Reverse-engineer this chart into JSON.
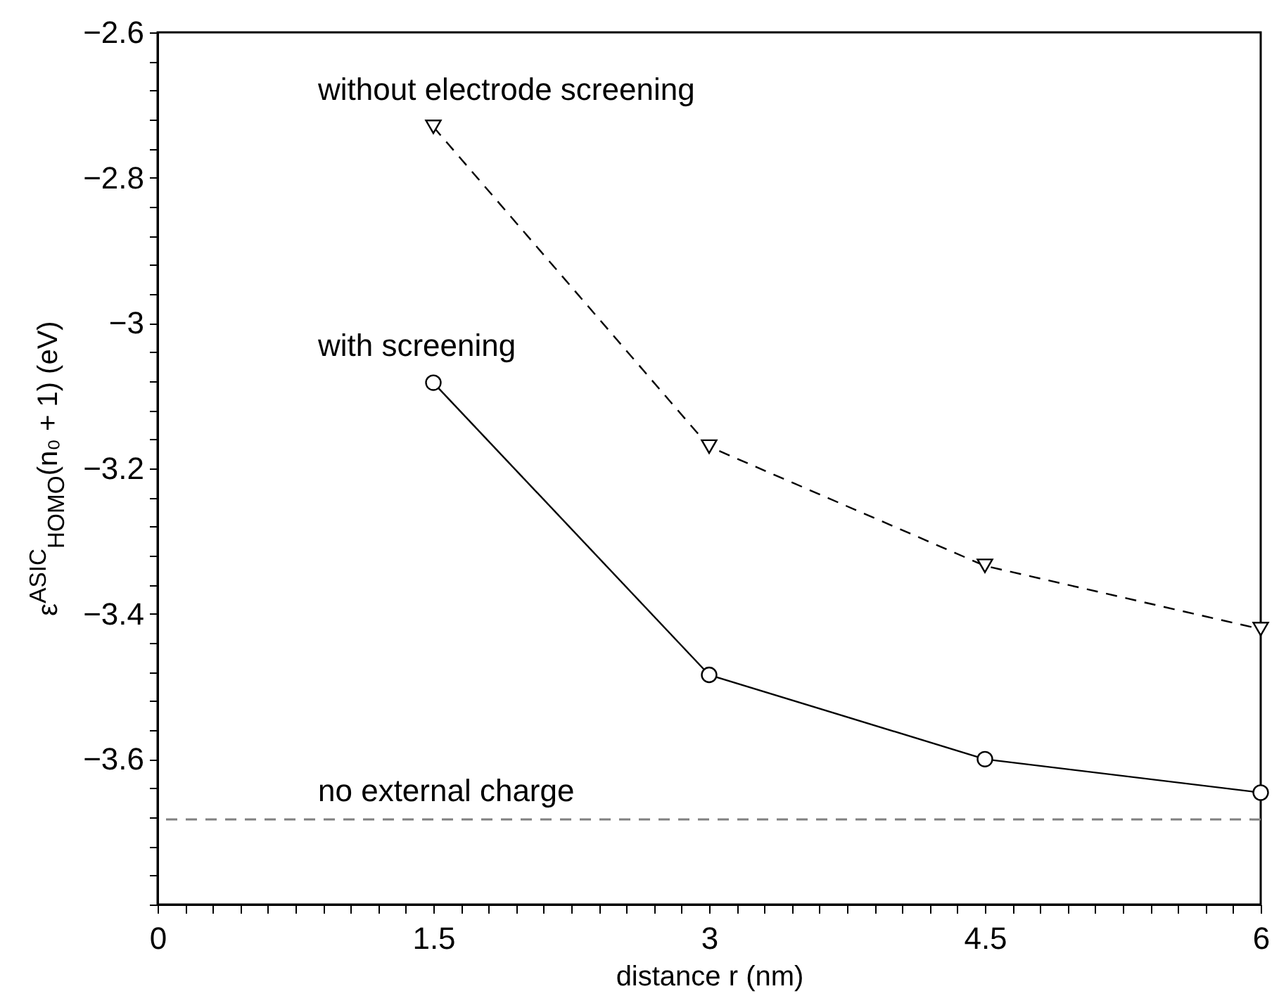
{
  "chart_data": {
    "type": "line",
    "xlabel": "distance r (nm)",
    "ylabel": "ε$^{ASIC}$$_{HOMO}$(n₀ + 1) (eV)",
    "x": [
      1.5,
      3,
      4.5,
      6
    ],
    "series": [
      {
        "name": "without electrode screening",
        "color": "#000000",
        "values": [
          -2.73,
          -3.17,
          -3.334,
          -3.421
        ],
        "marker": "triangle",
        "line_style": "dashed"
      },
      {
        "name": "with screening",
        "color": "#000000",
        "values": [
          -3.082,
          -3.484,
          -3.6,
          -3.646
        ],
        "marker": "circle",
        "line_style": "solid"
      }
    ],
    "ref_lines": [
      {
        "axis": "y",
        "value": -3.683,
        "label": "no external charge",
        "color": "#808080",
        "line_style": "dashed"
      }
    ],
    "xlim": [
      0,
      6
    ],
    "ylim": [
      -3.8,
      -2.6
    ],
    "xticks": [
      0,
      {
        "value": 0.15,
        "label": null
      },
      {
        "value": 0.3,
        "label": null
      },
      {
        "value": 0.45,
        "label": null
      },
      {
        "value": 0.6,
        "label": null
      },
      {
        "value": 0.75,
        "label": null
      },
      {
        "value": 0.9,
        "label": null
      },
      {
        "value": 1.05,
        "label": null
      },
      {
        "value": 1.2,
        "label": null
      },
      {
        "value": 1.35,
        "label": null
      },
      1.5,
      {
        "value": 1.65,
        "label": null
      },
      {
        "value": 1.8,
        "label": null
      },
      {
        "value": 1.95,
        "label": null
      },
      {
        "value": 2.1,
        "label": null
      },
      {
        "value": 2.25,
        "label": null
      },
      {
        "value": 2.4,
        "label": null
      },
      {
        "value": 2.55,
        "label": null
      },
      {
        "value": 2.7,
        "label": null
      },
      {
        "value": 2.85,
        "label": null
      },
      3,
      {
        "value": 3.15,
        "label": null
      },
      {
        "value": 3.3,
        "label": null
      },
      {
        "value": 3.45,
        "label": null
      },
      {
        "value": 3.6,
        "label": null
      },
      {
        "value": 3.75,
        "label": null
      },
      {
        "value": 3.9,
        "label": null
      },
      {
        "value": 4.05,
        "label": null
      },
      {
        "value": 4.2,
        "label": null
      },
      {
        "value": 4.35,
        "label": null
      },
      4.5,
      {
        "value": 4.65,
        "label": null
      },
      {
        "value": 4.8,
        "label": null
      },
      {
        "value": 4.95,
        "label": null
      },
      {
        "value": 5.1,
        "label": null
      },
      {
        "value": 5.25,
        "label": null
      },
      {
        "value": 5.4,
        "label": null
      },
      {
        "value": 5.55,
        "label": null
      },
      {
        "value": 5.7,
        "label": null
      },
      {
        "value": 5.85,
        "label": null
      },
      6
    ],
    "yticks": [
      {
        "value": -3.8,
        "label": null
      },
      {
        "value": -3.76,
        "label": null
      },
      {
        "value": -3.72,
        "label": null
      },
      {
        "value": -3.68,
        "label": null
      },
      {
        "value": -3.64,
        "label": null
      },
      {
        "value": -3.6,
        "label": "−3.6"
      },
      {
        "value": -3.56,
        "label": null
      },
      {
        "value": -3.52,
        "label": null
      },
      {
        "value": -3.48,
        "label": null
      },
      {
        "value": -3.44,
        "label": null
      },
      {
        "value": -3.4,
        "label": "−3.4"
      },
      {
        "value": -3.36,
        "label": null
      },
      {
        "value": -3.32,
        "label": null
      },
      {
        "value": -3.28,
        "label": null
      },
      {
        "value": -3.24,
        "label": null
      },
      {
        "value": -3.2,
        "label": "−3.2"
      },
      {
        "value": -3.16,
        "label": null
      },
      {
        "value": -3.12,
        "label": null
      },
      {
        "value": -3.08,
        "label": null
      },
      {
        "value": -3.04,
        "label": null
      },
      {
        "value": -3,
        "label": "−3"
      },
      {
        "value": -2.96,
        "label": null
      },
      {
        "value": -2.92,
        "label": null
      },
      {
        "value": -2.88,
        "label": null
      },
      {
        "value": -2.84,
        "label": null
      },
      {
        "value": -2.8,
        "label": "−2.8"
      },
      {
        "value": -2.76,
        "label": null
      },
      {
        "value": -2.72,
        "label": null
      },
      {
        "value": -2.68,
        "label": null
      },
      {
        "value": -2.64,
        "label": null
      },
      {
        "value": -2.6,
        "label": "−2.6"
      }
    ],
    "grid": false,
    "legend": false
  }
}
